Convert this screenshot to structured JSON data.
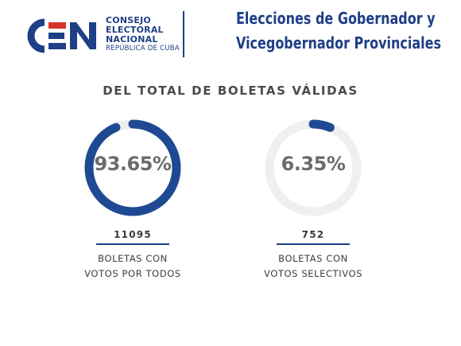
{
  "logo": {
    "mark": "CEN",
    "lines": [
      "CONSEJO",
      "ELECTORAL",
      "NACIONAL"
    ],
    "sub": "REPÚBLICA DE CUBA",
    "colors": {
      "blue": "#1f3f86",
      "red": "#d9332b"
    }
  },
  "header": {
    "title_line1": "Elecciones de Gobernador y",
    "title_line2": "Vicegobernador Provinciales"
  },
  "subtitle": "DEL TOTAL DE BOLETAS VÁLIDAS",
  "stats": [
    {
      "percent_text": "93.65%",
      "percent": 93.65,
      "count": "11095",
      "label_line1": "BOLETAS CON",
      "label_line2": "VOTOS POR TODOS"
    },
    {
      "percent_text": "6.35%",
      "percent": 6.35,
      "count": "752",
      "label_line1": "BOLETAS CON",
      "label_line2": "VOTOS SELECTIVOS"
    }
  ],
  "colors": {
    "ring_fill": "#1f4a93",
    "ring_track": "#efefef",
    "text": "#6b6b6b"
  }
}
